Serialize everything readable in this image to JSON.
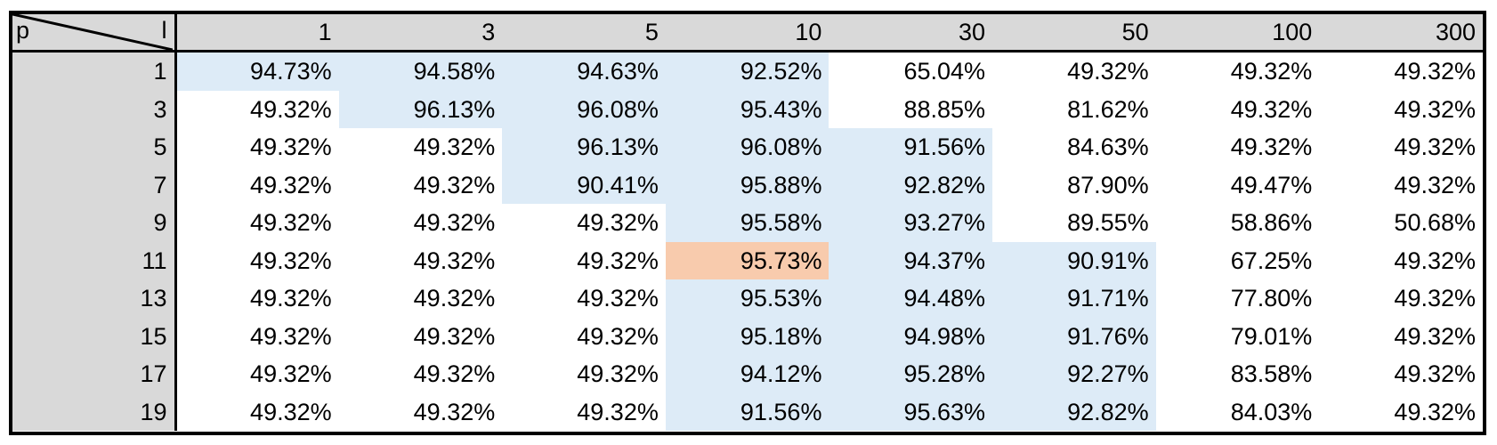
{
  "table": {
    "corner_row_label": "p",
    "corner_col_label": "l",
    "colors": {
      "header_bg": "#d9d9d9",
      "highlight": "#ddebf7",
      "best": "#f8cbad"
    },
    "columns": [
      "1",
      "3",
      "5",
      "10",
      "30",
      "50",
      "100",
      "300"
    ],
    "rows": [
      {
        "p": "1",
        "cells": [
          "94.73%",
          "94.58%",
          "94.63%",
          "92.52%",
          "65.04%",
          "49.32%",
          "49.32%",
          "49.32%"
        ],
        "highlight": [
          1,
          1,
          1,
          1,
          0,
          0,
          0,
          0
        ],
        "best": [
          0,
          0,
          0,
          0,
          0,
          0,
          0,
          0
        ]
      },
      {
        "p": "3",
        "cells": [
          "49.32%",
          "96.13%",
          "96.08%",
          "95.43%",
          "88.85%",
          "81.62%",
          "49.32%",
          "49.32%"
        ],
        "highlight": [
          0,
          1,
          1,
          1,
          0,
          0,
          0,
          0
        ],
        "best": [
          0,
          0,
          0,
          0,
          0,
          0,
          0,
          0
        ]
      },
      {
        "p": "5",
        "cells": [
          "49.32%",
          "49.32%",
          "96.13%",
          "96.08%",
          "91.56%",
          "84.63%",
          "49.32%",
          "49.32%"
        ],
        "highlight": [
          0,
          0,
          1,
          1,
          1,
          0,
          0,
          0
        ],
        "best": [
          0,
          0,
          0,
          0,
          0,
          0,
          0,
          0
        ]
      },
      {
        "p": "7",
        "cells": [
          "49.32%",
          "49.32%",
          "90.41%",
          "95.88%",
          "92.82%",
          "87.90%",
          "49.47%",
          "49.32%"
        ],
        "highlight": [
          0,
          0,
          1,
          1,
          1,
          0,
          0,
          0
        ],
        "best": [
          0,
          0,
          0,
          0,
          0,
          0,
          0,
          0
        ]
      },
      {
        "p": "9",
        "cells": [
          "49.32%",
          "49.32%",
          "49.32%",
          "95.58%",
          "93.27%",
          "89.55%",
          "58.86%",
          "50.68%"
        ],
        "highlight": [
          0,
          0,
          0,
          1,
          1,
          0,
          0,
          0
        ],
        "best": [
          0,
          0,
          0,
          0,
          0,
          0,
          0,
          0
        ]
      },
      {
        "p": "11",
        "cells": [
          "49.32%",
          "49.32%",
          "49.32%",
          "95.73%",
          "94.37%",
          "90.91%",
          "67.25%",
          "49.32%"
        ],
        "highlight": [
          0,
          0,
          0,
          0,
          1,
          1,
          0,
          0
        ],
        "best": [
          0,
          0,
          0,
          1,
          0,
          0,
          0,
          0
        ]
      },
      {
        "p": "13",
        "cells": [
          "49.32%",
          "49.32%",
          "49.32%",
          "95.53%",
          "94.48%",
          "91.71%",
          "77.80%",
          "49.32%"
        ],
        "highlight": [
          0,
          0,
          0,
          1,
          1,
          1,
          0,
          0
        ],
        "best": [
          0,
          0,
          0,
          0,
          0,
          0,
          0,
          0
        ]
      },
      {
        "p": "15",
        "cells": [
          "49.32%",
          "49.32%",
          "49.32%",
          "95.18%",
          "94.98%",
          "91.76%",
          "79.01%",
          "49.32%"
        ],
        "highlight": [
          0,
          0,
          0,
          1,
          1,
          1,
          0,
          0
        ],
        "best": [
          0,
          0,
          0,
          0,
          0,
          0,
          0,
          0
        ]
      },
      {
        "p": "17",
        "cells": [
          "49.32%",
          "49.32%",
          "49.32%",
          "94.12%",
          "95.28%",
          "92.27%",
          "83.58%",
          "49.32%"
        ],
        "highlight": [
          0,
          0,
          0,
          1,
          1,
          1,
          0,
          0
        ],
        "best": [
          0,
          0,
          0,
          0,
          0,
          0,
          0,
          0
        ]
      },
      {
        "p": "19",
        "cells": [
          "49.32%",
          "49.32%",
          "49.32%",
          "91.56%",
          "95.63%",
          "92.82%",
          "84.03%",
          "49.32%"
        ],
        "highlight": [
          0,
          0,
          0,
          1,
          1,
          1,
          0,
          0
        ],
        "best": [
          0,
          0,
          0,
          0,
          0,
          0,
          0,
          0
        ]
      }
    ]
  }
}
